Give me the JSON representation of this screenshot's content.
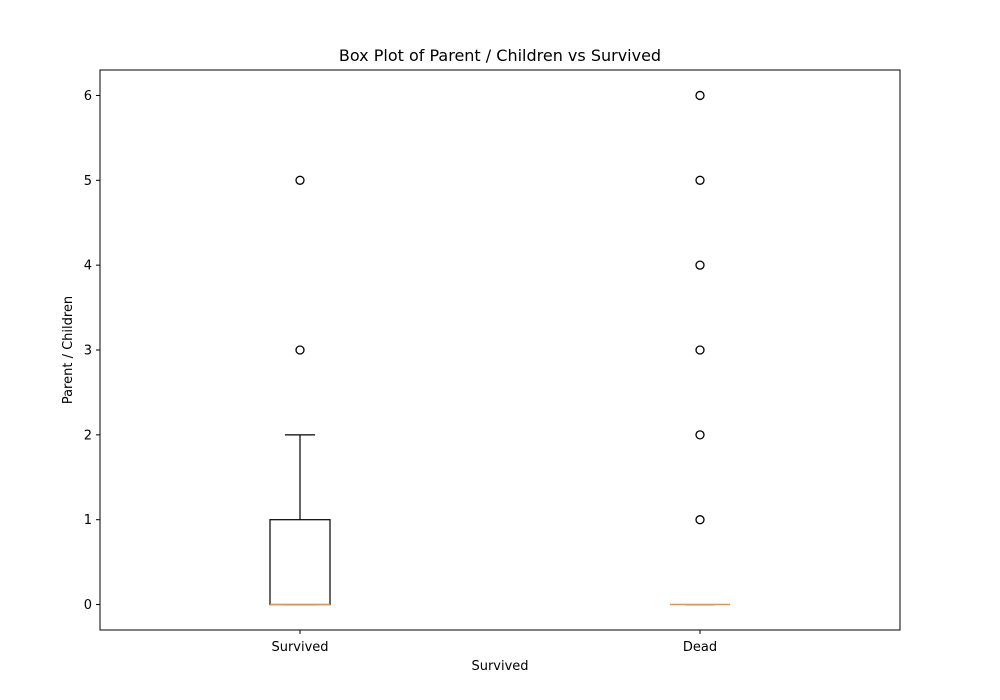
{
  "chart_data": {
    "type": "box",
    "title": "Box Plot of Parent / Children vs Survived",
    "xlabel": "Survived",
    "ylabel": "Parent / Children",
    "categories": [
      "Survived",
      "Dead"
    ],
    "ylim": [
      -0.3,
      6.3
    ],
    "yticks": [
      0,
      1,
      2,
      3,
      4,
      5,
      6
    ],
    "grid": false,
    "box_color": "#000000",
    "median_color": "#e8914a",
    "series": [
      {
        "category": "Survived",
        "q1": 0,
        "median": 0,
        "q3": 1,
        "whisker_low": 0,
        "whisker_high": 2,
        "outliers": [
          3,
          5
        ]
      },
      {
        "category": "Dead",
        "q1": 0,
        "median": 0,
        "q3": 0,
        "whisker_low": 0,
        "whisker_high": 0,
        "outliers": [
          1,
          2,
          3,
          4,
          5,
          6
        ]
      }
    ]
  }
}
